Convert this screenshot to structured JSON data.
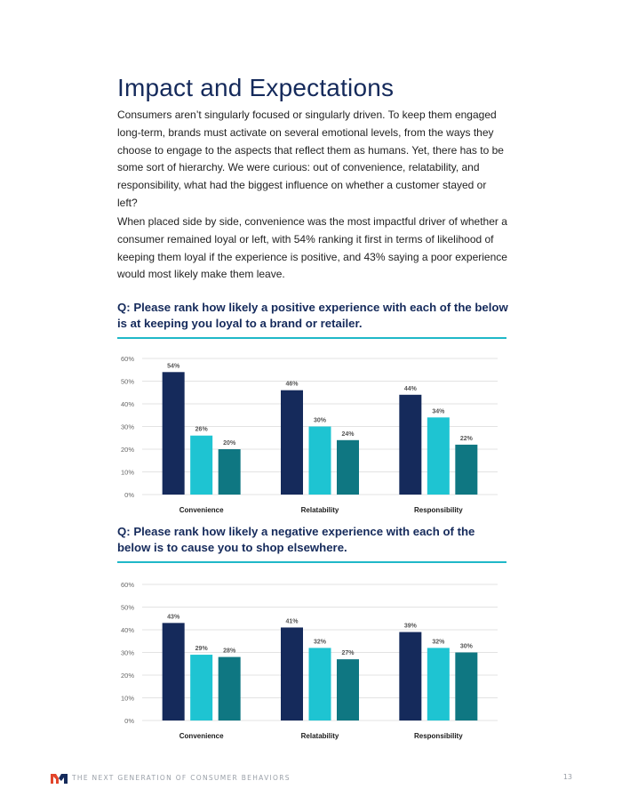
{
  "title": "Impact and Expectations",
  "paragraphs": [
    "Consumers aren’t singularly focused or singularly driven. To keep them engaged long-term, brands must activate on several emotional levels, from the ways they choose to engage to the aspects that reflect them as humans. Yet, there has to be some sort of hierarchy. We were curious: out of convenience, relatability, and responsibility, what had the biggest influence on whether a customer stayed or left?",
    "When placed side by side, convenience was the most impactful driver of whether a consumer remained loyal or left, with 54% ranking it first in terms of likelihood of keeping them loyal if the experience is positive, and 43% saying a poor experience would most likely make them leave."
  ],
  "questions": [
    "Q: Please rank how likely a positive experience with each of the below is at keeping you loyal to a brand or retailer.",
    "Q: Please rank how likely a negative experience with each of the below is to cause you to shop elsewhere."
  ],
  "colors": {
    "navy": "#152a5b",
    "cyan": "#1ec4d2",
    "teal": "#0f7782",
    "rule": "#1fb8c8",
    "grid": "#e3e3e3"
  },
  "chart_data": [
    {
      "type": "bar",
      "categories": [
        "Convenience",
        "Relatability",
        "Responsibility"
      ],
      "series": [
        {
          "values": [
            54,
            46,
            44
          ]
        },
        {
          "values": [
            26,
            30,
            34
          ]
        },
        {
          "values": [
            20,
            24,
            22
          ]
        }
      ],
      "value_suffix": "%",
      "yticks": [
        "0%",
        "10%",
        "20%",
        "30%",
        "40%",
        "50%",
        "60%"
      ],
      "ylim": [
        0,
        60
      ],
      "grid": true,
      "legend": "none"
    },
    {
      "type": "bar",
      "categories": [
        "Convenience",
        "Relatability",
        "Responsibility"
      ],
      "series": [
        {
          "values": [
            43,
            41,
            39
          ]
        },
        {
          "values": [
            29,
            32,
            32
          ]
        },
        {
          "values": [
            28,
            27,
            30
          ]
        }
      ],
      "value_suffix": "%",
      "yticks": [
        "0%",
        "10%",
        "20%",
        "30%",
        "40%",
        "50%",
        "60%"
      ],
      "ylim": [
        0,
        60
      ],
      "grid": true,
      "legend": "none"
    }
  ],
  "footer": {
    "logo_letter": "M",
    "text": "THE NEXT GENERATION OF CONSUMER BEHAVIORS",
    "page_number": "13"
  }
}
